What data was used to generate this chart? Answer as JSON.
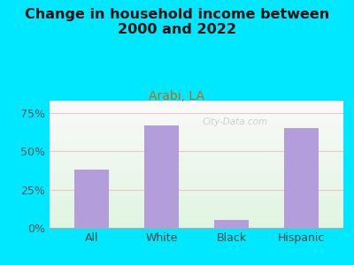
{
  "title": "Change in household income between\n2000 and 2022",
  "subtitle": "Arabi, LA",
  "categories": [
    "All",
    "White",
    "Black",
    "Hispanic"
  ],
  "values": [
    38,
    67,
    5,
    65
  ],
  "bar_color": "#b39ddb",
  "title_fontsize": 11.5,
  "subtitle_fontsize": 10,
  "subtitle_color": "#cc6600",
  "tick_label_fontsize": 9,
  "ylim": [
    0,
    83
  ],
  "yticks": [
    0,
    25,
    50,
    75
  ],
  "yticklabels": [
    "0%",
    "25%",
    "50%",
    "75%"
  ],
  "bg_outer": "#00e8ff",
  "grid_color": "#e8c8c8",
  "watermark": "City-Data.com"
}
